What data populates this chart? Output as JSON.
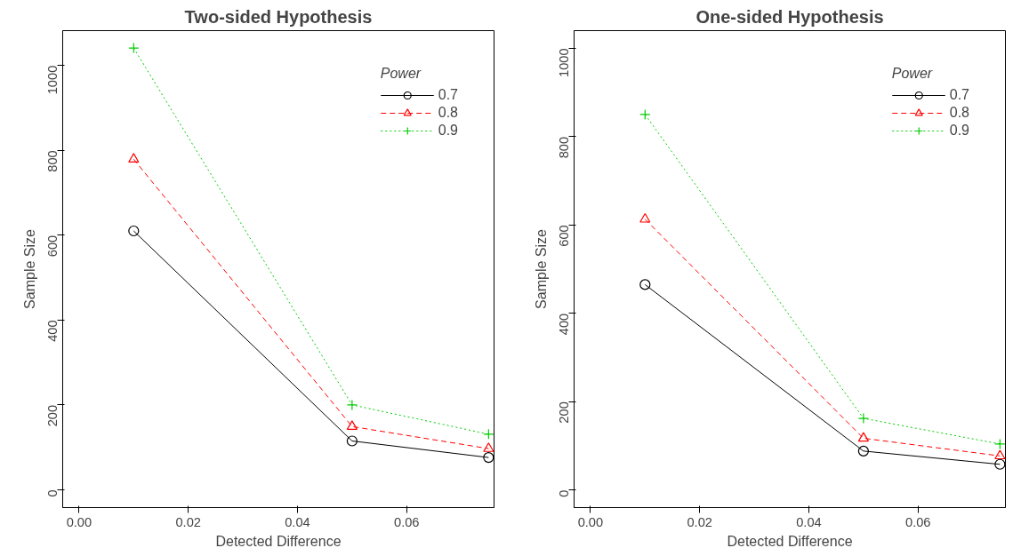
{
  "chart_data": [
    {
      "type": "line",
      "title": "Two-sided Hypothesis",
      "xlabel": "Detected Difference",
      "ylabel": "Sample Size",
      "legend_title": "Power",
      "x": [
        0.01,
        0.05,
        0.075
      ],
      "xlim": [
        -0.003,
        0.076
      ],
      "ylim": [
        -42,
        1082
      ],
      "xticks": [
        {
          "value": 0,
          "label": "0.00"
        },
        {
          "value": 0.02,
          "label": "0.02"
        },
        {
          "value": 0.04,
          "label": "0.04"
        },
        {
          "value": 0.06,
          "label": "0.06"
        }
      ],
      "yticks": [
        0,
        200,
        400,
        600,
        800,
        1000
      ],
      "grid": false,
      "legend": "top right",
      "series": [
        {
          "name": "0.7",
          "color": "#000000",
          "values": [
            610,
            115,
            76
          ],
          "marker": "circle",
          "line_style": "solid"
        },
        {
          "name": "0.8",
          "color": "#ff0000",
          "values": [
            779,
            149,
            97
          ],
          "marker": "triangle",
          "line_style": "dashed"
        },
        {
          "name": "0.9",
          "color": "#00cd00",
          "values": [
            1041,
            200,
            131
          ],
          "marker": "cross",
          "line_style": "dotted"
        }
      ]
    },
    {
      "type": "line",
      "title": "One-sided Hypothesis",
      "xlabel": "Detected Difference",
      "ylabel": "Sample Size",
      "legend_title": "Power",
      "x": [
        0.01,
        0.05,
        0.075
      ],
      "xlim": [
        -0.003,
        0.076
      ],
      "ylim": [
        -40,
        1040
      ],
      "xticks": [
        {
          "value": 0,
          "label": "0.00"
        },
        {
          "value": 0.02,
          "label": "0.02"
        },
        {
          "value": 0.04,
          "label": "0.04"
        },
        {
          "value": 0.06,
          "label": "0.06"
        }
      ],
      "yticks": [
        0,
        200,
        400,
        600,
        800,
        1000
      ],
      "grid": false,
      "legend": "top right",
      "series": [
        {
          "name": "0.7",
          "color": "#000000",
          "values": [
            465,
            88,
            58
          ],
          "marker": "circle",
          "line_style": "solid"
        },
        {
          "name": "0.8",
          "color": "#ff0000",
          "values": [
            613,
            117,
            77
          ],
          "marker": "triangle",
          "line_style": "dashed"
        },
        {
          "name": "0.9",
          "color": "#00cd00",
          "values": [
            850,
            162,
            104
          ],
          "marker": "cross",
          "line_style": "dotted"
        }
      ]
    }
  ]
}
